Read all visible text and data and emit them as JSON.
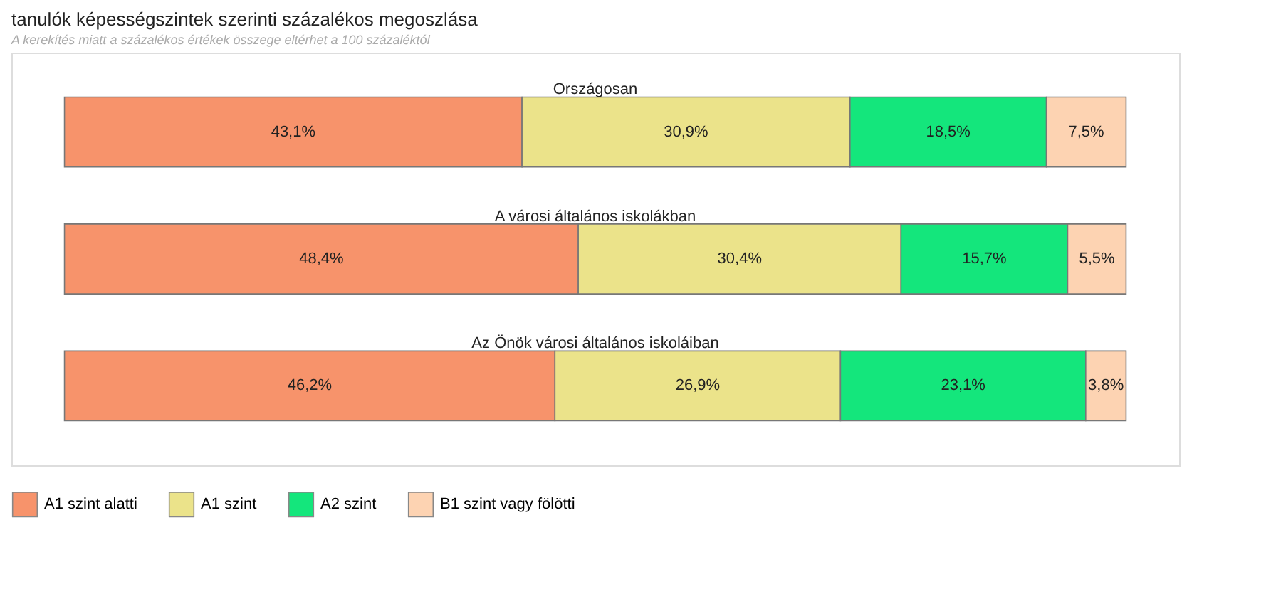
{
  "chart_data": {
    "type": "bar",
    "orientation": "horizontal",
    "stacked": true,
    "title": "tanulók képességszintek szerinti százalékos megoszlása",
    "subtitle": "A kerekítés miatt a százalékos értékek összege eltérhet a 100 százaléktól",
    "categories": [
      "Országosan",
      "A városi általános iskolákban",
      "Az Önök városi általános iskoláiban"
    ],
    "series": [
      {
        "name": "A1 szint alatti",
        "color": "#f7936b",
        "values": [
          43.1,
          48.4,
          46.2
        ],
        "value_labels": [
          "43,1%",
          "48,4%",
          "46,2%"
        ]
      },
      {
        "name": "A1 szint",
        "color": "#ebe38a",
        "values": [
          30.9,
          30.4,
          26.9
        ],
        "value_labels": [
          "30,9%",
          "30,4%",
          "26,9%"
        ]
      },
      {
        "name": "A2 szint",
        "color": "#14e67c",
        "values": [
          18.5,
          15.7,
          23.1
        ],
        "value_labels": [
          "18,5%",
          "15,7%",
          "23,1%"
        ]
      },
      {
        "name": "B1 szint vagy fölötti",
        "color": "#fdd3b2",
        "values": [
          7.5,
          5.5,
          3.8
        ],
        "value_labels": [
          "7,5%",
          "5,5%",
          "3,8%"
        ]
      }
    ],
    "legend": "bottom"
  }
}
